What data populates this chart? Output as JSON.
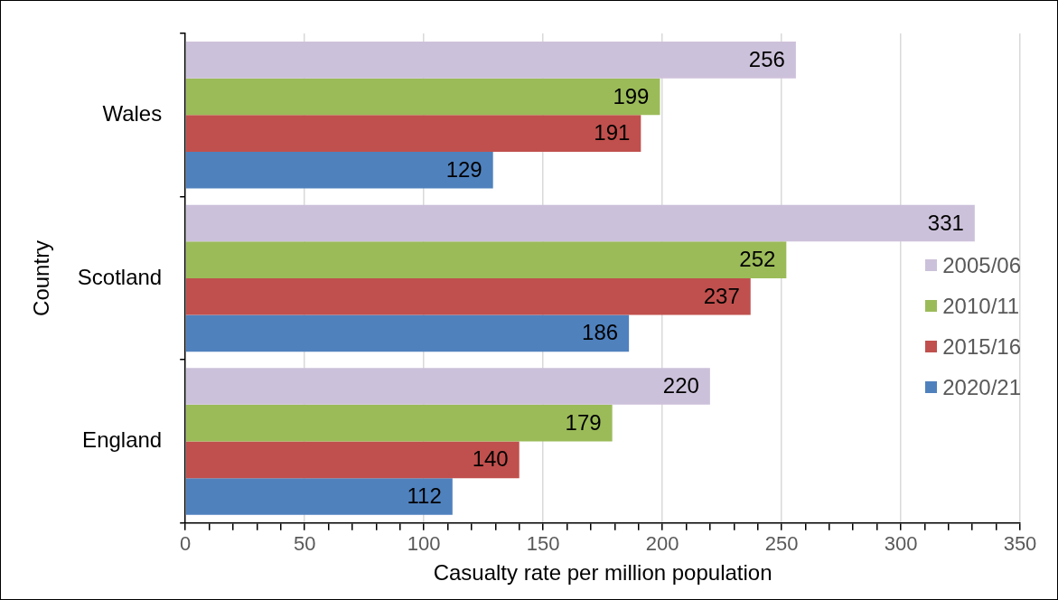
{
  "chart_data": {
    "type": "bar",
    "orientation": "horizontal",
    "xlabel": "Casualty rate per million population",
    "ylabel": "Country",
    "categories": [
      "Wales",
      "Scotland",
      "England"
    ],
    "series": [
      {
        "name": "2005/06",
        "color": "#ccc1da",
        "values": [
          256,
          331,
          220
        ]
      },
      {
        "name": "2010/11",
        "color": "#9bbb59",
        "values": [
          199,
          252,
          179
        ]
      },
      {
        "name": "2015/16",
        "color": "#c0504d",
        "values": [
          191,
          237,
          140
        ]
      },
      {
        "name": "2020/21",
        "color": "#4f81bd",
        "values": [
          129,
          186,
          112
        ]
      }
    ],
    "xlim": [
      0,
      350
    ],
    "xticks": [
      0,
      {
        "value": 10,
        "label": null
      },
      {
        "value": 20,
        "label": null
      },
      {
        "value": 30,
        "label": null
      },
      {
        "value": 40,
        "label": null
      },
      50,
      {
        "value": 60,
        "label": null
      },
      {
        "value": 70,
        "label": null
      },
      {
        "value": 80,
        "label": null
      },
      {
        "value": 90,
        "label": null
      },
      100,
      {
        "value": 110,
        "label": null
      },
      {
        "value": 120,
        "label": null
      },
      {
        "value": 130,
        "label": null
      },
      {
        "value": 140,
        "label": null
      },
      150,
      {
        "value": 160,
        "label": null
      },
      {
        "value": 170,
        "label": null
      },
      {
        "value": 180,
        "label": null
      },
      {
        "value": 190,
        "label": null
      },
      200,
      {
        "value": 210,
        "label": null
      },
      {
        "value": 220,
        "label": null
      },
      {
        "value": 230,
        "label": null
      },
      {
        "value": 240,
        "label": null
      },
      250,
      {
        "value": 260,
        "label": null
      },
      {
        "value": 270,
        "label": null
      },
      {
        "value": 280,
        "label": null
      },
      {
        "value": 290,
        "label": null
      },
      300,
      {
        "value": 310,
        "label": null
      },
      {
        "value": 320,
        "label": null
      },
      {
        "value": 330,
        "label": null
      },
      {
        "value": 340,
        "label": null
      },
      350
    ],
    "grid": "x",
    "legend": "right",
    "data_labels": true
  }
}
